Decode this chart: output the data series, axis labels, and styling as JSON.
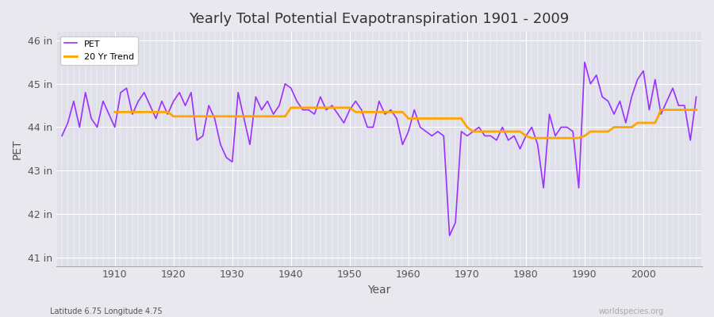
{
  "title": "Yearly Total Potential Evapotranspiration 1901 - 2009",
  "xlabel": "Year",
  "ylabel": "PET",
  "subtitle_left": "Latitude 6.75 Longitude 4.75",
  "subtitle_right": "worldspecies.org",
  "pet_color": "#9B30FF",
  "trend_color": "#FFA500",
  "bg_color": "#E8E8EE",
  "plot_bg_color": "#E0E0EA",
  "ylim": [
    40.8,
    46.2
  ],
  "xlim": [
    1900,
    2010
  ],
  "yticks": [
    41,
    42,
    43,
    44,
    45,
    46
  ],
  "ytick_labels": [
    "41 in",
    "42 in",
    "43 in",
    "44 in",
    "45 in",
    "46 in"
  ],
  "xticks": [
    1910,
    1920,
    1930,
    1940,
    1950,
    1960,
    1970,
    1980,
    1990,
    2000
  ],
  "years": [
    1901,
    1902,
    1903,
    1904,
    1905,
    1906,
    1907,
    1908,
    1909,
    1910,
    1911,
    1912,
    1913,
    1914,
    1915,
    1916,
    1917,
    1918,
    1919,
    1920,
    1921,
    1922,
    1923,
    1924,
    1925,
    1926,
    1927,
    1928,
    1929,
    1930,
    1931,
    1932,
    1933,
    1934,
    1935,
    1936,
    1937,
    1938,
    1939,
    1940,
    1941,
    1942,
    1943,
    1944,
    1945,
    1946,
    1947,
    1948,
    1949,
    1950,
    1951,
    1952,
    1953,
    1954,
    1955,
    1956,
    1957,
    1958,
    1959,
    1960,
    1961,
    1962,
    1963,
    1964,
    1965,
    1966,
    1967,
    1968,
    1969,
    1970,
    1971,
    1972,
    1973,
    1974,
    1975,
    1976,
    1977,
    1978,
    1979,
    1980,
    1981,
    1982,
    1983,
    1984,
    1985,
    1986,
    1987,
    1988,
    1989,
    1990,
    1991,
    1992,
    1993,
    1994,
    1995,
    1996,
    1997,
    1998,
    1999,
    2000,
    2001,
    2002,
    2003,
    2004,
    2005,
    2006,
    2007,
    2008,
    2009
  ],
  "pet_values": [
    43.8,
    44.1,
    44.6,
    44.0,
    44.8,
    44.2,
    44.0,
    44.6,
    44.3,
    44.0,
    44.8,
    44.9,
    44.3,
    44.6,
    44.8,
    44.5,
    44.2,
    44.6,
    44.3,
    44.6,
    44.8,
    44.5,
    44.8,
    43.7,
    43.8,
    44.5,
    44.2,
    43.6,
    43.3,
    43.2,
    44.8,
    44.2,
    43.6,
    44.7,
    44.4,
    44.6,
    44.3,
    44.5,
    45.0,
    44.9,
    44.6,
    44.4,
    44.4,
    44.3,
    44.7,
    44.4,
    44.5,
    44.3,
    44.1,
    44.4,
    44.6,
    44.4,
    44.0,
    44.0,
    44.6,
    44.3,
    44.4,
    44.2,
    43.6,
    43.9,
    44.4,
    44.0,
    43.9,
    43.8,
    43.9,
    43.8,
    41.5,
    41.8,
    43.9,
    43.8,
    43.9,
    44.0,
    43.8,
    43.8,
    43.7,
    44.0,
    43.7,
    43.8,
    43.5,
    43.8,
    44.0,
    43.6,
    42.6,
    44.3,
    43.8,
    44.0,
    44.0,
    43.9,
    42.6,
    45.5,
    45.0,
    45.2,
    44.7,
    44.6,
    44.3,
    44.6,
    44.1,
    44.7,
    45.1,
    45.3,
    44.4,
    45.1,
    44.3,
    44.6,
    44.9,
    44.5,
    44.5,
    43.7,
    44.7
  ],
  "trend_years": [
    1910,
    1911,
    1912,
    1913,
    1914,
    1915,
    1916,
    1917,
    1918,
    1919,
    1920,
    1921,
    1922,
    1923,
    1924,
    1925,
    1926,
    1927,
    1928,
    1929,
    1930,
    1931,
    1932,
    1933,
    1934,
    1935,
    1936,
    1937,
    1938,
    1939,
    1940,
    1941,
    1942,
    1943,
    1944,
    1945,
    1946,
    1947,
    1948,
    1949,
    1950,
    1951,
    1952,
    1953,
    1954,
    1955,
    1956,
    1957,
    1958,
    1959,
    1960,
    1961,
    1962,
    1963,
    1964,
    1965,
    1966,
    1967,
    1968,
    1969,
    1970,
    1971,
    1972,
    1973,
    1974,
    1975,
    1976,
    1977,
    1978,
    1979,
    1980,
    1981,
    1982,
    1983,
    1984,
    1985,
    1986,
    1987,
    1988,
    1989,
    1990,
    1991,
    1992,
    1993,
    1994,
    1995,
    1996,
    1997,
    1998,
    1999,
    2000,
    2001,
    2002,
    2003,
    2004,
    2005,
    2006,
    2007,
    2008,
    2009
  ],
  "trend_values": [
    44.35,
    44.35,
    44.35,
    44.35,
    44.35,
    44.35,
    44.35,
    44.35,
    44.35,
    44.35,
    44.25,
    44.25,
    44.25,
    44.25,
    44.25,
    44.25,
    44.25,
    44.25,
    44.25,
    44.25,
    44.25,
    44.25,
    44.25,
    44.25,
    44.25,
    44.25,
    44.25,
    44.25,
    44.25,
    44.25,
    44.45,
    44.45,
    44.45,
    44.45,
    44.45,
    44.45,
    44.45,
    44.45,
    44.45,
    44.45,
    44.45,
    44.35,
    44.35,
    44.35,
    44.35,
    44.35,
    44.35,
    44.35,
    44.35,
    44.35,
    44.2,
    44.2,
    44.2,
    44.2,
    44.2,
    44.2,
    44.2,
    44.2,
    44.2,
    44.2,
    44.0,
    43.9,
    43.9,
    43.9,
    43.9,
    43.9,
    43.9,
    43.9,
    43.9,
    43.9,
    43.8,
    43.75,
    43.75,
    43.75,
    43.75,
    43.75,
    43.75,
    43.75,
    43.75,
    43.75,
    43.8,
    43.9,
    43.9,
    43.9,
    43.9,
    44.0,
    44.0,
    44.0,
    44.0,
    44.1,
    44.1,
    44.1,
    44.1,
    44.4,
    44.4,
    44.4,
    44.4,
    44.4,
    44.4,
    44.4
  ]
}
